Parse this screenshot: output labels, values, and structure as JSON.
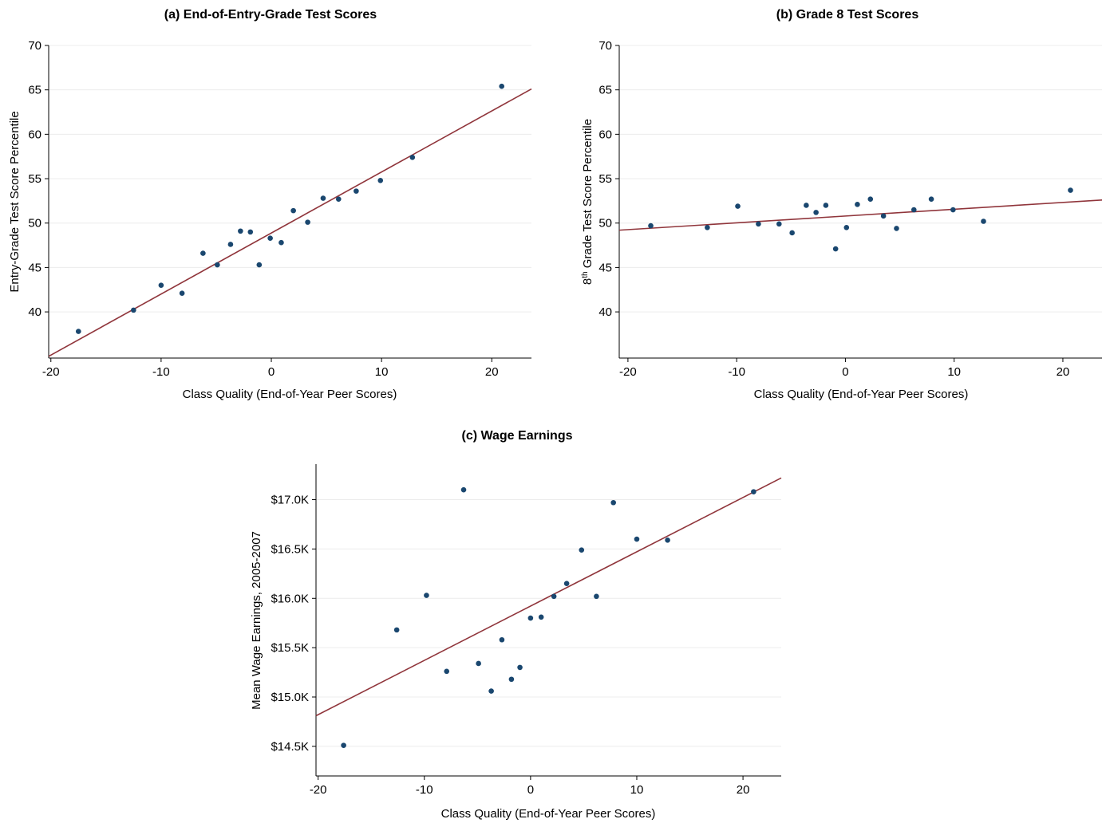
{
  "colors": {
    "point": "#1a476f",
    "fit_line": "#90353b",
    "grid": "#ececec"
  },
  "chart_data": [
    {
      "type": "scatter",
      "title": "(a) End-of-Entry-Grade Test Scores",
      "xlabel": "Class Quality (End-of-Year Peer Scores)",
      "ylabel": "Entry-Grade Test Score Percentile",
      "xlim": [
        -20.2,
        23.6
      ],
      "ylim": [
        34.8,
        70
      ],
      "xticks": [
        -20,
        -10,
        0,
        10,
        20
      ],
      "yticks": [
        40,
        45,
        50,
        55,
        60,
        65,
        70
      ],
      "x_tick_labels": [
        "-20",
        "-10",
        "0",
        "10",
        "20"
      ],
      "y_tick_labels": [
        "40",
        "45",
        "50",
        "55",
        "60",
        "65",
        "70"
      ],
      "grid": "horizontal",
      "points": {
        "x": [
          -17.5,
          -12.5,
          -10.0,
          -8.1,
          -6.2,
          -4.9,
          -3.7,
          -2.8,
          -1.9,
          -1.1,
          -0.1,
          0.9,
          2.0,
          3.3,
          4.7,
          6.1,
          7.7,
          9.9,
          12.8,
          20.9
        ],
        "y": [
          37.8,
          40.2,
          43.0,
          42.1,
          46.6,
          45.3,
          47.6,
          49.1,
          49.0,
          45.3,
          48.3,
          47.8,
          51.4,
          50.1,
          52.8,
          52.7,
          53.6,
          54.8,
          57.4,
          65.4
        ]
      },
      "fit_line": {
        "x": [
          -20.2,
          23.6
        ],
        "y": [
          35.0,
          65.1
        ]
      }
    },
    {
      "type": "scatter",
      "title": "(b) Grade 8 Test Scores",
      "xlabel": "Class Quality (End-of-Year Peer Scores)",
      "ylabel_prefix": "8",
      "ylabel_sup": "th",
      "ylabel_rest": " Grade Test Score Percentile",
      "xlim": [
        -20.8,
        23.6
      ],
      "ylim": [
        34.8,
        70
      ],
      "xticks": [
        -20,
        -10,
        0,
        10,
        20
      ],
      "yticks": [
        40,
        45,
        50,
        55,
        60,
        65,
        70
      ],
      "x_tick_labels": [
        "-20",
        "-10",
        "0",
        "10",
        "20"
      ],
      "y_tick_labels": [
        "40",
        "45",
        "50",
        "55",
        "60",
        "65",
        "70"
      ],
      "grid": "horizontal",
      "points": {
        "x": [
          -17.9,
          -12.7,
          -9.9,
          -8.0,
          -6.1,
          -4.9,
          -3.6,
          -2.7,
          -1.8,
          -0.9,
          0.1,
          1.1,
          2.3,
          3.5,
          4.7,
          6.3,
          7.9,
          9.9,
          12.7,
          20.7
        ],
        "y": [
          49.7,
          49.5,
          51.9,
          49.9,
          49.9,
          48.9,
          52.0,
          51.2,
          52.0,
          47.1,
          49.5,
          52.1,
          52.7,
          50.8,
          49.4,
          51.5,
          52.7,
          51.5,
          50.2,
          53.7
        ]
      },
      "fit_line": {
        "x": [
          -20.8,
          23.6
        ],
        "y": [
          49.2,
          52.6
        ]
      }
    },
    {
      "type": "scatter",
      "title": "(c) Wage Earnings",
      "xlabel": "Class Quality (End-of-Year Peer Scores)",
      "ylabel": "Mean Wage Earnings, 2005-2007",
      "xlim": [
        -20.2,
        23.6
      ],
      "ylim": [
        14.2,
        17.36
      ],
      "xticks": [
        -20,
        -10,
        0,
        10,
        20
      ],
      "yticks": [
        14.5,
        15.0,
        15.5,
        16.0,
        16.5,
        17.0
      ],
      "x_tick_labels": [
        "-20",
        "-10",
        "0",
        "10",
        "20"
      ],
      "y_tick_labels": [
        "$14.5K",
        "$15.0K",
        "$15.5K",
        "$16.0K",
        "$16.5K",
        "$17.0K"
      ],
      "grid": "horizontal",
      "points": {
        "x": [
          -17.6,
          -12.6,
          -9.8,
          -7.9,
          -6.3,
          -4.9,
          -3.7,
          -2.7,
          -1.8,
          -1.0,
          0.0,
          1.0,
          2.2,
          3.4,
          4.8,
          6.2,
          7.8,
          10.0,
          12.9,
          21.0
        ],
        "y": [
          14.51,
          15.68,
          16.03,
          15.26,
          17.1,
          15.34,
          15.06,
          15.58,
          15.18,
          15.3,
          15.8,
          15.81,
          16.02,
          16.15,
          16.49,
          16.02,
          16.97,
          16.6,
          16.59,
          17.08
        ]
      },
      "fit_line": {
        "x": [
          -20.2,
          23.6
        ],
        "y": [
          14.81,
          17.22
        ]
      }
    }
  ]
}
